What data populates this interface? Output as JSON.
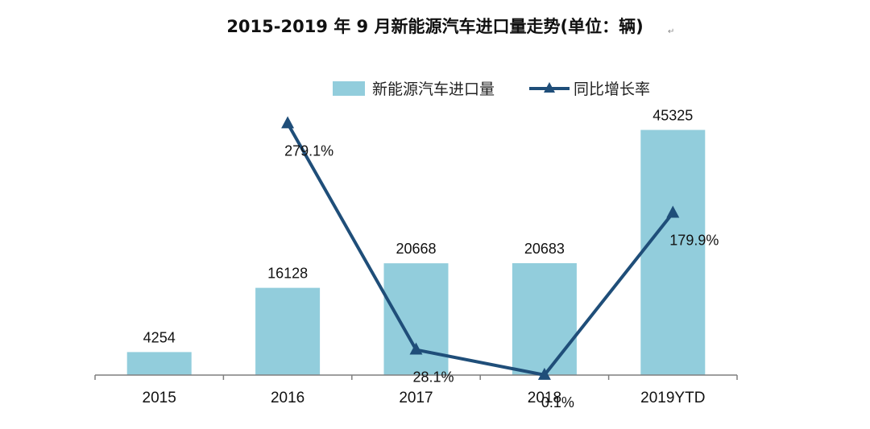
{
  "chart_data": {
    "type": "bar",
    "title": "2015-2019 年 9 月新能源汽车进口量走势(单位：辆)",
    "title_suffix_mark": "↵",
    "categories": [
      "2015",
      "2016",
      "2017",
      "2018",
      "2019YTD"
    ],
    "series": [
      {
        "name": "新能源汽车进口量",
        "kind": "bar",
        "axis": "left",
        "values": [
          4254,
          16128,
          20668,
          20683,
          45325
        ],
        "value_labels": [
          "4254",
          "16128",
          "20668",
          "20683",
          "45325"
        ],
        "color": "#92CDDC"
      },
      {
        "name": "同比增长率",
        "kind": "line",
        "axis": "right",
        "marker": "triangle",
        "values": [
          null,
          279.1,
          28.1,
          0.1,
          179.9
        ],
        "value_labels": [
          "",
          "279.1%",
          "28.1%",
          "0.1%",
          "179.9%"
        ],
        "color": "#1F4E79"
      }
    ],
    "ylim_left": [
      0,
      50000
    ],
    "ylim_right": [
      0,
      300
    ],
    "grid": false,
    "legend_position": "top-right",
    "xlabel": "",
    "ylabel": ""
  }
}
